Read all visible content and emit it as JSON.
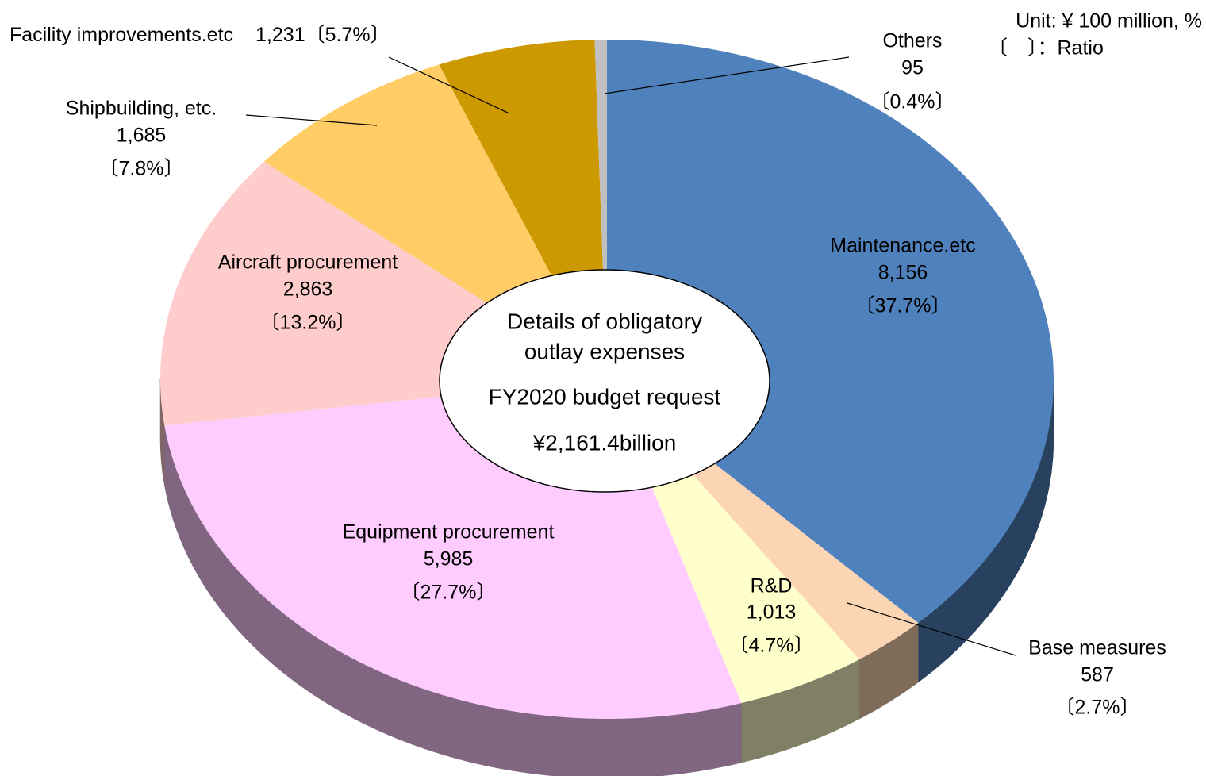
{
  "chart_data": {
    "type": "pie",
    "unit_note": [
      "Unit: ¥ 100 million, %",
      "〔　〕：Ratio"
    ],
    "center_text": [
      "Details of obligatory",
      "outlay expenses",
      "FY2020 budget request",
      "¥2,161.4billion"
    ],
    "categories": [
      "Maintenance.etc",
      "Base measures",
      "R&D",
      "Equipment procurement",
      "Aircraft procurement",
      "Shipbuilding, etc.",
      "Facility improvements.etc",
      "Others"
    ],
    "values": [
      8156,
      587,
      1013,
      5985,
      2863,
      1685,
      1231,
      95
    ],
    "value_labels": [
      "8,156",
      "587",
      "1,013",
      "5,985",
      "2,863",
      "1,685",
      "1,231",
      "95"
    ],
    "ratios": [
      37.7,
      2.7,
      4.7,
      27.7,
      13.2,
      7.8,
      5.7,
      0.4
    ],
    "ratio_labels": [
      "〔37.7%〕",
      "〔2.7%〕",
      "〔4.7%〕",
      "〔27.7%〕",
      "〔13.2%〕",
      "〔7.8%〕",
      "〔5.7%〕",
      "〔0.4%〕"
    ],
    "colors": [
      "#4f81bd",
      "#fcd5b4",
      "#ffffcc",
      "#ffccff",
      "#ffcccc",
      "#ffcc66",
      "#cc9900",
      "#c0c0c0"
    ]
  }
}
